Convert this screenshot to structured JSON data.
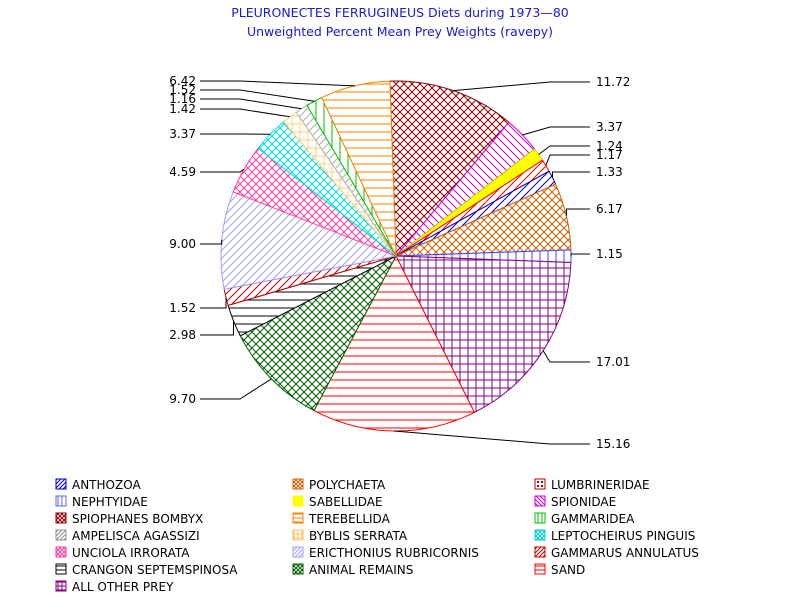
{
  "chart_data": {
    "type": "pie",
    "title": "PLEURONECTES FERRUGINEUS Diets during 1973—80",
    "subtitle": "Unweighted Percent Mean Prey Weights (ravepy)",
    "slices": [
      {
        "name": "LUMBRINERIDAE",
        "value": 11.72,
        "label": "11.72",
        "color": "#8b0000",
        "pattern": "cross-diag"
      },
      {
        "name": "SPIONIDAE",
        "value": 3.37,
        "label": "3.37",
        "color": "#d000d0",
        "pattern": "diag-down"
      },
      {
        "name": "SABELLIDAE",
        "value": 1.24,
        "label": "1.24",
        "color": "#ffff00",
        "pattern": "solid"
      },
      {
        "name": "UNCIOLA IRRORATA",
        "value": 1.17,
        "label": "1.17",
        "color": "#ff0000",
        "pattern": "diag-up"
      },
      {
        "name": "ANTHOZOA",
        "value": 1.33,
        "label": "1.33",
        "color": "#0000c0",
        "pattern": "diag-up"
      },
      {
        "name": "POLYCHAETA",
        "value": 6.17,
        "label": "6.17",
        "color": "#d06000",
        "pattern": "cross-diag"
      },
      {
        "name": "NEPHTYIDAE",
        "value": 1.15,
        "label": "1.15",
        "color": "#4040ff",
        "pattern": "vertical"
      },
      {
        "name": "ALL OTHER PREY",
        "value": 17.01,
        "label": "17.01",
        "color": "#800080",
        "pattern": "grid"
      },
      {
        "name": "SAND",
        "value": 15.16,
        "label": "15.16",
        "color": "#ff0000",
        "pattern": "horizontal"
      },
      {
        "name": "ANIMAL REMAINS",
        "value": 9.7,
        "label": "9.70",
        "color": "#006000",
        "pattern": "cross-diag"
      },
      {
        "name": "CRANGON SEPTEMSPINOSA",
        "value": 2.98,
        "label": "2.98",
        "color": "#000000",
        "pattern": "horizontal"
      },
      {
        "name": "GAMMARUS ANNULATUS",
        "value": 1.52,
        "label": "1.52",
        "color": "#c00000",
        "pattern": "diag-up"
      },
      {
        "name": "ERICTHONIUS RUBRICORNIS",
        "value": 9.0,
        "label": "9.00",
        "color": "#a0a0ff",
        "pattern": "diag-up"
      },
      {
        "name": "UNCIOLA IRRORATA",
        "value": 4.59,
        "label": "4.59",
        "color": "#ff40a0",
        "pattern": "cross-diag"
      },
      {
        "name": "LEPTOCHEIRUS PINGUIS",
        "value": 3.37,
        "label": "3.37",
        "color": "#00e0e0",
        "pattern": "cross-diag"
      },
      {
        "name": "BYBLIS SERRATA",
        "value": 1.42,
        "label": "1.42",
        "color": "#ffd080",
        "pattern": "grid"
      },
      {
        "name": "AMPELISCA AGASSIZI",
        "value": 1.16,
        "label": "1.16",
        "color": "#b0b0b0",
        "pattern": "diag-up"
      },
      {
        "name": "GAMMARIDEA",
        "value": 1.52,
        "label": "1.52",
        "color": "#00c000",
        "pattern": "vertical"
      },
      {
        "name": "TEREBELLIDA",
        "value": 6.42,
        "label": "6.42",
        "color": "#ff8000",
        "pattern": "horizontal"
      }
    ],
    "legend": [
      {
        "name": "ANTHOZOA",
        "color": "#0000c0",
        "pattern": "diag-up"
      },
      {
        "name": "POLYCHAETA",
        "color": "#d06000",
        "pattern": "cross-diag"
      },
      {
        "name": "LUMBRINERIDAE",
        "color": "#c00000",
        "pattern": "box"
      },
      {
        "name": "NEPHTYIDAE",
        "color": "#6060ff",
        "pattern": "vertical"
      },
      {
        "name": "SABELLIDAE",
        "color": "#ffff00",
        "pattern": "solid"
      },
      {
        "name": "SPIONIDAE",
        "color": "#d000d0",
        "pattern": "diag-down"
      },
      {
        "name": "SPIOPHANES BOMBYX",
        "color": "#8b0000",
        "pattern": "cross-diag"
      },
      {
        "name": "TEREBELLIDA",
        "color": "#ff8000",
        "pattern": "horizontal"
      },
      {
        "name": "GAMMARIDEA",
        "color": "#00c000",
        "pattern": "vertical"
      },
      {
        "name": "AMPELISCA AGASSIZI",
        "color": "#909090",
        "pattern": "diag-up"
      },
      {
        "name": "BYBLIS SERRATA",
        "color": "#ffc060",
        "pattern": "grid"
      },
      {
        "name": "LEPTOCHEIRUS PINGUIS",
        "color": "#00d0d0",
        "pattern": "cross-diag"
      },
      {
        "name": "UNCIOLA IRRORATA",
        "color": "#ff40a0",
        "pattern": "cross-diag"
      },
      {
        "name": "ERICTHONIUS RUBRICORNIS",
        "color": "#a0a0ff",
        "pattern": "diag-up"
      },
      {
        "name": "GAMMARUS ANNULATUS",
        "color": "#c00000",
        "pattern": "diag-up"
      },
      {
        "name": "CRANGON SEPTEMSPINOSA",
        "color": "#000000",
        "pattern": "horizontal"
      },
      {
        "name": "ANIMAL REMAINS",
        "color": "#006000",
        "pattern": "cross-diag"
      },
      {
        "name": "SAND",
        "color": "#ff0000",
        "pattern": "horizontal"
      },
      {
        "name": "ALL OTHER PREY",
        "color": "#800080",
        "pattern": "grid"
      }
    ]
  }
}
